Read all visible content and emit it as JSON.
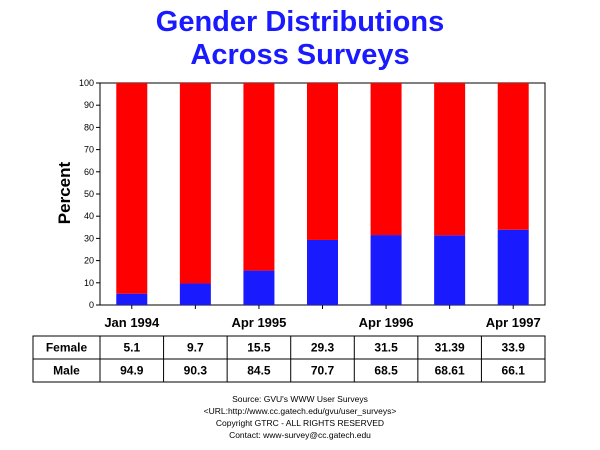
{
  "chart_data": {
    "type": "bar",
    "stacked": true,
    "title": [
      "Gender Distributions",
      "Across Surveys"
    ],
    "ylabel": "Percent",
    "ylim": [
      0,
      100
    ],
    "yticks": [
      0,
      10,
      20,
      30,
      40,
      50,
      60,
      70,
      80,
      90,
      100
    ],
    "categories": [
      "Jan 1994",
      "",
      "Apr 1995",
      "",
      "Apr 1996",
      "",
      "Apr 1997"
    ],
    "series": [
      {
        "name": "Female",
        "color": "#1a1aff",
        "values": [
          5.1,
          9.7,
          15.5,
          29.3,
          31.5,
          31.39,
          33.9
        ]
      },
      {
        "name": "Male",
        "color": "#ff0000",
        "values": [
          94.9,
          90.3,
          84.5,
          70.7,
          68.5,
          68.61,
          66.1
        ]
      }
    ],
    "table": {
      "rows": [
        {
          "label": "Female",
          "values": [
            "5.1",
            "9.7",
            "15.5",
            "29.3",
            "31.5",
            "31.39",
            "33.9"
          ]
        },
        {
          "label": "Male",
          "values": [
            "94.9",
            "90.3",
            "84.5",
            "70.7",
            "68.5",
            "68.61",
            "66.1"
          ]
        }
      ]
    },
    "grid": false,
    "legend": "data table below chart"
  },
  "footer": {
    "line1": "Source: GVU's WWW User Surveys",
    "line2": "<URL:http://www.cc.gatech.edu/gvu/user_surveys>",
    "line3": "Copyright GTRC - ALL RIGHTS RESERVED",
    "line4": "Contact: www-survey@cc.gatech.edu"
  }
}
